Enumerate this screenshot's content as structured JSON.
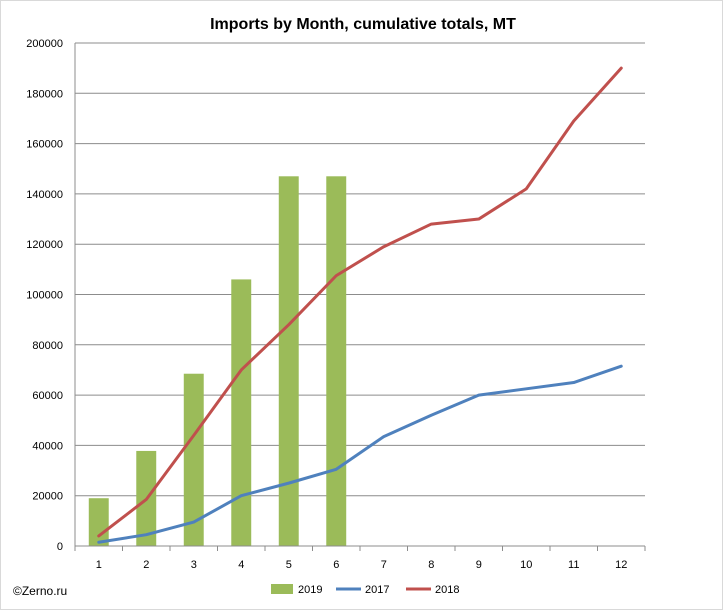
{
  "chart_data": {
    "type": "bar",
    "title": "Imports by Month, cumulative totals, MT",
    "xlabel": "",
    "ylabel": "",
    "categories": [
      "1",
      "2",
      "3",
      "4",
      "5",
      "6",
      "7",
      "8",
      "9",
      "10",
      "11",
      "12"
    ],
    "ylim": [
      0,
      200000
    ],
    "yticks": [
      0,
      20000,
      40000,
      60000,
      80000,
      100000,
      120000,
      140000,
      160000,
      180000,
      200000
    ],
    "grid": true,
    "legend_position": "bottom",
    "series": [
      {
        "name": "2019",
        "kind": "bar",
        "color": "#9bbb59",
        "values": [
          19000,
          37800,
          68500,
          106000,
          147000,
          147000,
          null,
          null,
          null,
          null,
          null,
          null
        ]
      },
      {
        "name": "2017",
        "kind": "line",
        "color": "#4f81bd",
        "values": [
          1500,
          4500,
          9500,
          20000,
          25000,
          30500,
          43500,
          52000,
          60000,
          62500,
          65000,
          71500
        ]
      },
      {
        "name": "2018",
        "kind": "line",
        "color": "#c0504d",
        "values": [
          4000,
          18500,
          44000,
          70000,
          88000,
          107500,
          119000,
          128000,
          130000,
          142000,
          169000,
          190000
        ]
      }
    ]
  },
  "copyright": "©Zerno.ru"
}
